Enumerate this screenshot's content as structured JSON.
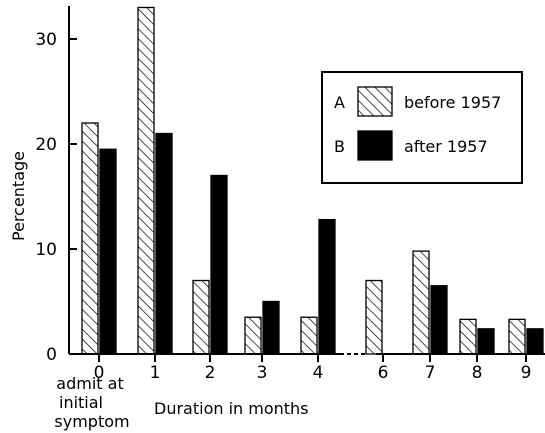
{
  "chart_data": {
    "type": "bar",
    "title": "",
    "xlabel": "Duration in months",
    "ylabel": "Percentage",
    "ylim": [
      0,
      33
    ],
    "yticks": [
      0,
      10,
      20,
      30
    ],
    "categories": [
      "0",
      "1",
      "2",
      "3",
      "4",
      "6",
      "7",
      "8",
      "9"
    ],
    "category_note": [
      "admit at",
      "initial",
      "symptom"
    ],
    "series": [
      {
        "name": "before 1957",
        "key": "A",
        "pattern": "hatched",
        "values": [
          22,
          33,
          7,
          3.5,
          3.5,
          7,
          9.8,
          3.3,
          3.3
        ]
      },
      {
        "name": "after 1957",
        "key": "B",
        "pattern": "solid",
        "values": [
          19.5,
          21,
          17,
          5,
          12.8,
          0,
          6.5,
          2.4,
          2.4
        ]
      }
    ],
    "axis_break_between": [
      "4",
      "6"
    ],
    "legend_position": "top-right",
    "colors": {
      "ink": "#000000",
      "background": "#ffffff"
    }
  }
}
